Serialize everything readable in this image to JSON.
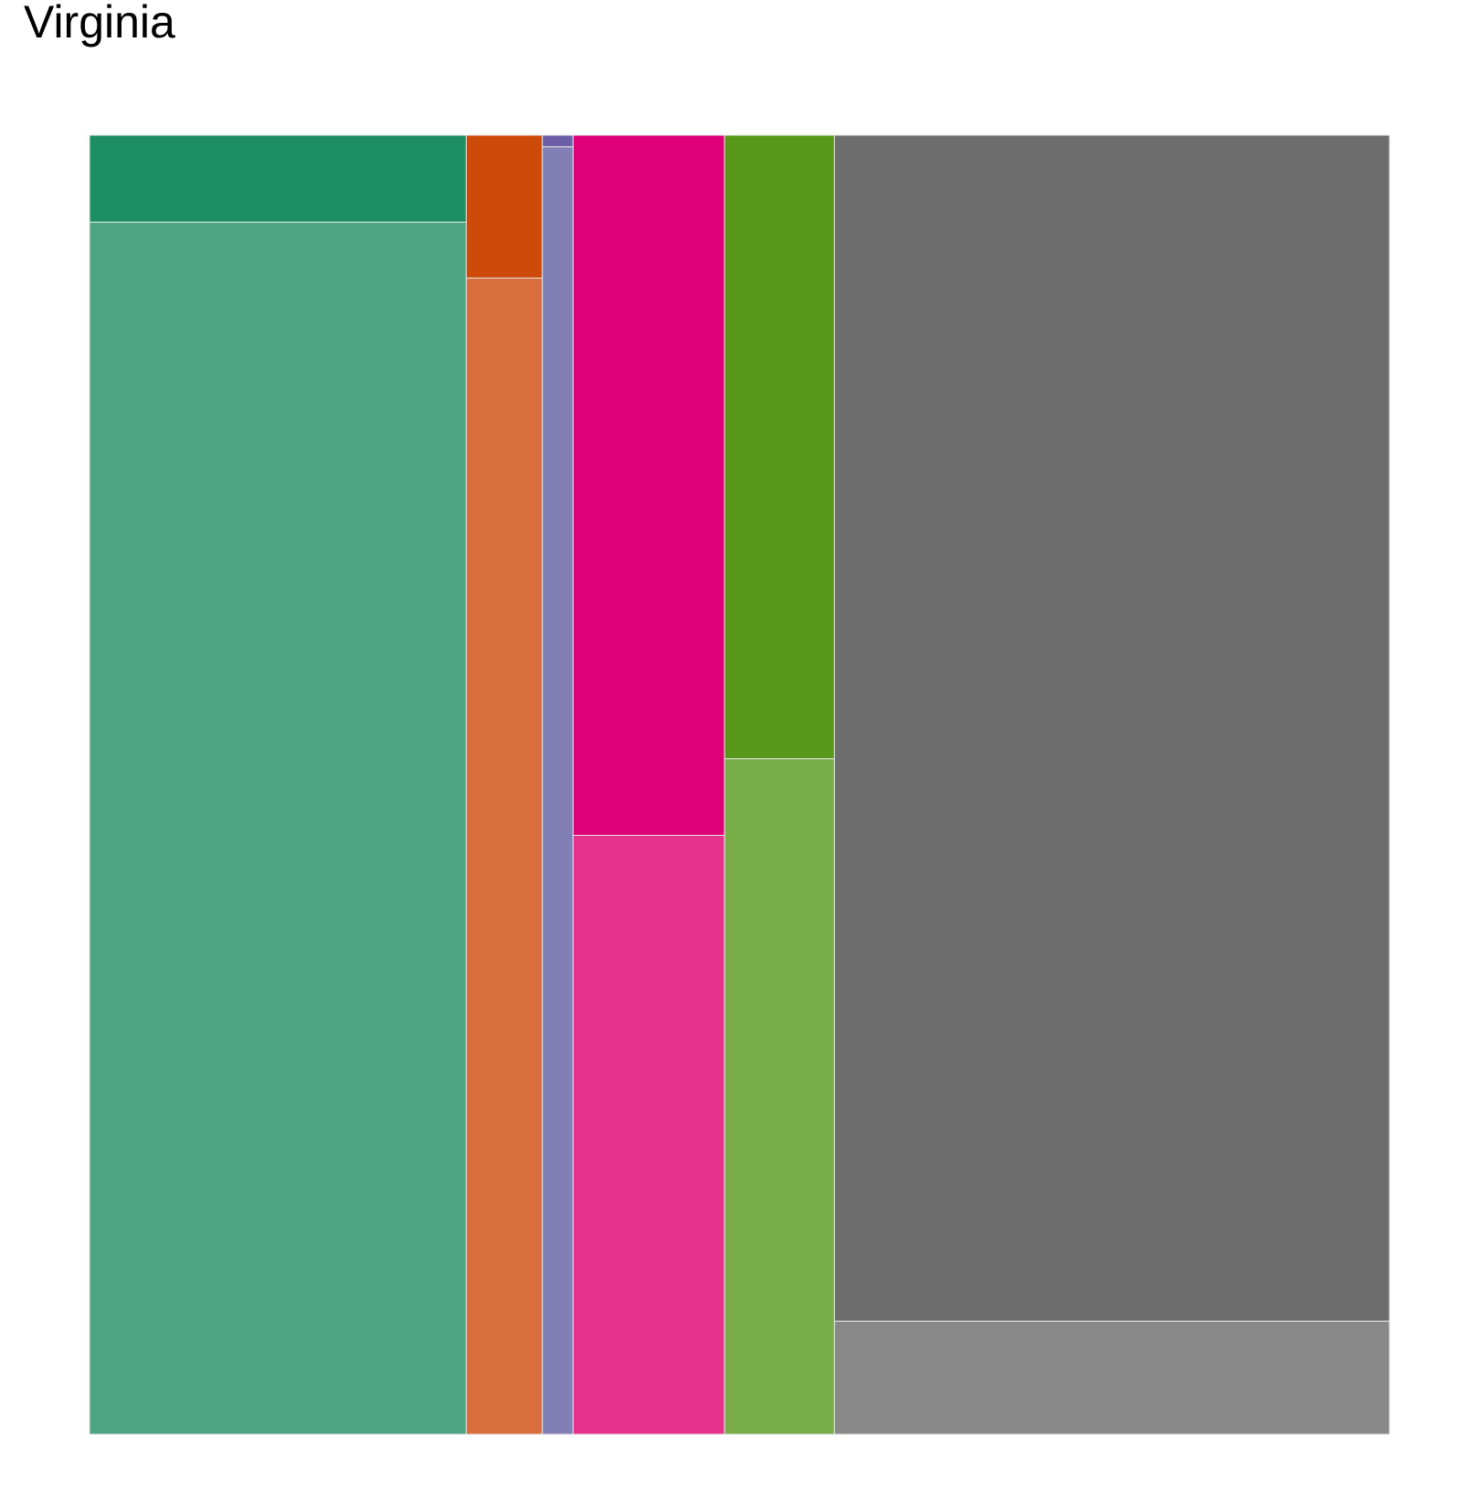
{
  "chart_data": {
    "type": "mosaic",
    "title": "Virginia",
    "xlabel": "",
    "ylabel": "",
    "legend": "none",
    "grid": false,
    "axes_shown": false,
    "columns": [
      {
        "share": 0.2898,
        "segments": [
          {
            "share": 0.067,
            "color": "#1B8E64"
          },
          {
            "share": 0.933,
            "color": "#4DA683"
          }
        ]
      },
      {
        "share": 0.0585,
        "segments": [
          {
            "share": 0.11,
            "color": "#CD4A08"
          },
          {
            "share": 0.89,
            "color": "#D86E3C"
          }
        ]
      },
      {
        "share": 0.0237,
        "segments": [
          {
            "share": 0.009,
            "color": "#6C5FA8"
          },
          {
            "share": 0.991,
            "color": "#827EB6"
          }
        ]
      },
      {
        "share": 0.1165,
        "segments": [
          {
            "share": 0.539,
            "color": "#DD0076"
          },
          {
            "share": 0.461,
            "color": "#E5338D"
          }
        ]
      },
      {
        "share": 0.0845,
        "segments": [
          {
            "share": 0.48,
            "color": "#579818"
          },
          {
            "share": 0.52,
            "color": "#78AD48"
          }
        ]
      },
      {
        "share": 0.427,
        "segments": [
          {
            "share": 0.913,
            "color": "#6D6D6D"
          },
          {
            "share": 0.087,
            "color": "#898989"
          }
        ]
      }
    ],
    "tile_border_color": "#E6E6E6"
  }
}
